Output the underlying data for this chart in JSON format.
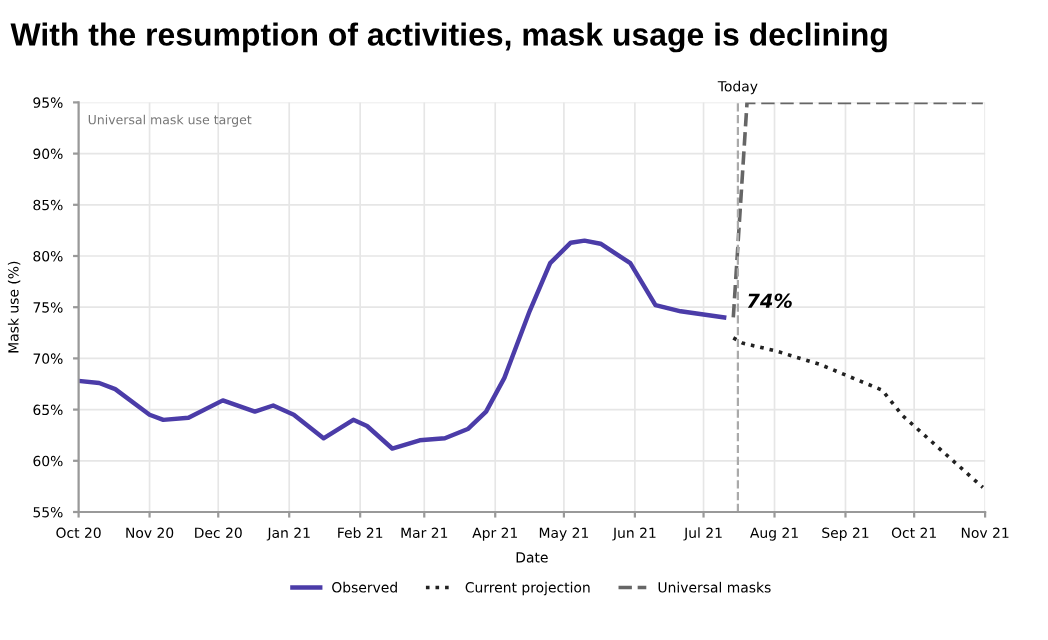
{
  "chart_data": {
    "type": "line",
    "title": "With the resumption of activities, mask usage is declining",
    "xlabel": "Date",
    "ylabel": "Mask use (%)",
    "xlim": [
      "2020-10-01",
      "2021-11-01"
    ],
    "xticks": [
      {
        "value": "2020-10-01",
        "label": "Oct 20"
      },
      {
        "value": "2020-11-01",
        "label": "Nov 20"
      },
      {
        "value": "2020-12-01",
        "label": "Dec 20"
      },
      {
        "value": "2021-01-01",
        "label": "Jan 21"
      },
      {
        "value": "2021-02-01",
        "label": "Feb 21"
      },
      {
        "value": "2021-03-01",
        "label": "Mar 21"
      },
      {
        "value": "2021-04-01",
        "label": "Apr 21"
      },
      {
        "value": "2021-05-01",
        "label": "May 21"
      },
      {
        "value": "2021-06-01",
        "label": "Jun 21"
      },
      {
        "value": "2021-07-01",
        "label": "Jul 21"
      },
      {
        "value": "2021-08-01",
        "label": "Aug 21"
      },
      {
        "value": "2021-09-01",
        "label": "Sep 21"
      },
      {
        "value": "2021-10-01",
        "label": "Oct 21"
      },
      {
        "value": "2021-11-01",
        "label": "Nov 21"
      }
    ],
    "ylim": [
      55,
      95
    ],
    "yticks": [
      {
        "value": 55,
        "label": "55%"
      },
      {
        "value": 60,
        "label": "60%"
      },
      {
        "value": 65,
        "label": "65%"
      },
      {
        "value": 70,
        "label": "70%"
      },
      {
        "value": 75,
        "label": "75%"
      },
      {
        "value": 80,
        "label": "80%"
      },
      {
        "value": 85,
        "label": "85%"
      },
      {
        "value": 90,
        "label": "90%"
      },
      {
        "value": 95,
        "label": "95%"
      }
    ],
    "grid": true,
    "legend": "bottom",
    "series": [
      {
        "name": "Observed",
        "color": "#4b3ca8",
        "line_style": "solid",
        "x": [
          "2020-10-01",
          "2020-10-10",
          "2020-10-17",
          "2020-11-01",
          "2020-11-07",
          "2020-11-18",
          "2020-12-03",
          "2020-12-17",
          "2020-12-25",
          "2021-01-03",
          "2021-01-16",
          "2021-01-29",
          "2021-02-04",
          "2021-02-15",
          "2021-02-27",
          "2021-03-10",
          "2021-03-20",
          "2021-03-28",
          "2021-04-05",
          "2021-04-16",
          "2021-04-25",
          "2021-05-04",
          "2021-05-10",
          "2021-05-17",
          "2021-05-30",
          "2021-06-10",
          "2021-06-21",
          "2021-07-10"
        ],
        "values": [
          67.8,
          67.6,
          67.0,
          64.5,
          64.0,
          64.2,
          65.9,
          64.8,
          65.4,
          64.5,
          62.2,
          64.0,
          63.4,
          61.2,
          62.0,
          62.2,
          63.1,
          64.8,
          68.1,
          74.6,
          79.3,
          81.3,
          81.5,
          81.2,
          79.3,
          75.2,
          74.6,
          74
        ]
      },
      {
        "name": "Current projection",
        "color": "#222222",
        "line_style": "dotted",
        "x": [
          "2021-07-14",
          "2021-07-18",
          "2021-08-02",
          "2021-08-21",
          "2021-09-17",
          "2021-09-26",
          "2021-10-31"
        ],
        "values": [
          72.0,
          71.5,
          70.7,
          69.4,
          66.9,
          64.4,
          57.4
        ]
      },
      {
        "name": "Universal masks",
        "color": "#666666",
        "line_style": "dashed",
        "x": [
          "2021-07-14",
          "2021-07-20",
          "2021-10-31"
        ],
        "values": [
          74,
          95,
          95
        ]
      }
    ],
    "ref_lines": [
      {
        "axis": "x",
        "value": "2021-07-16",
        "label": "Today",
        "color": "#aaaaaa",
        "line_style": "dashed"
      }
    ],
    "annotations": [
      {
        "text": "74%",
        "x": "2021-07-10",
        "y": 74
      },
      "Universal mask use target"
    ]
  }
}
